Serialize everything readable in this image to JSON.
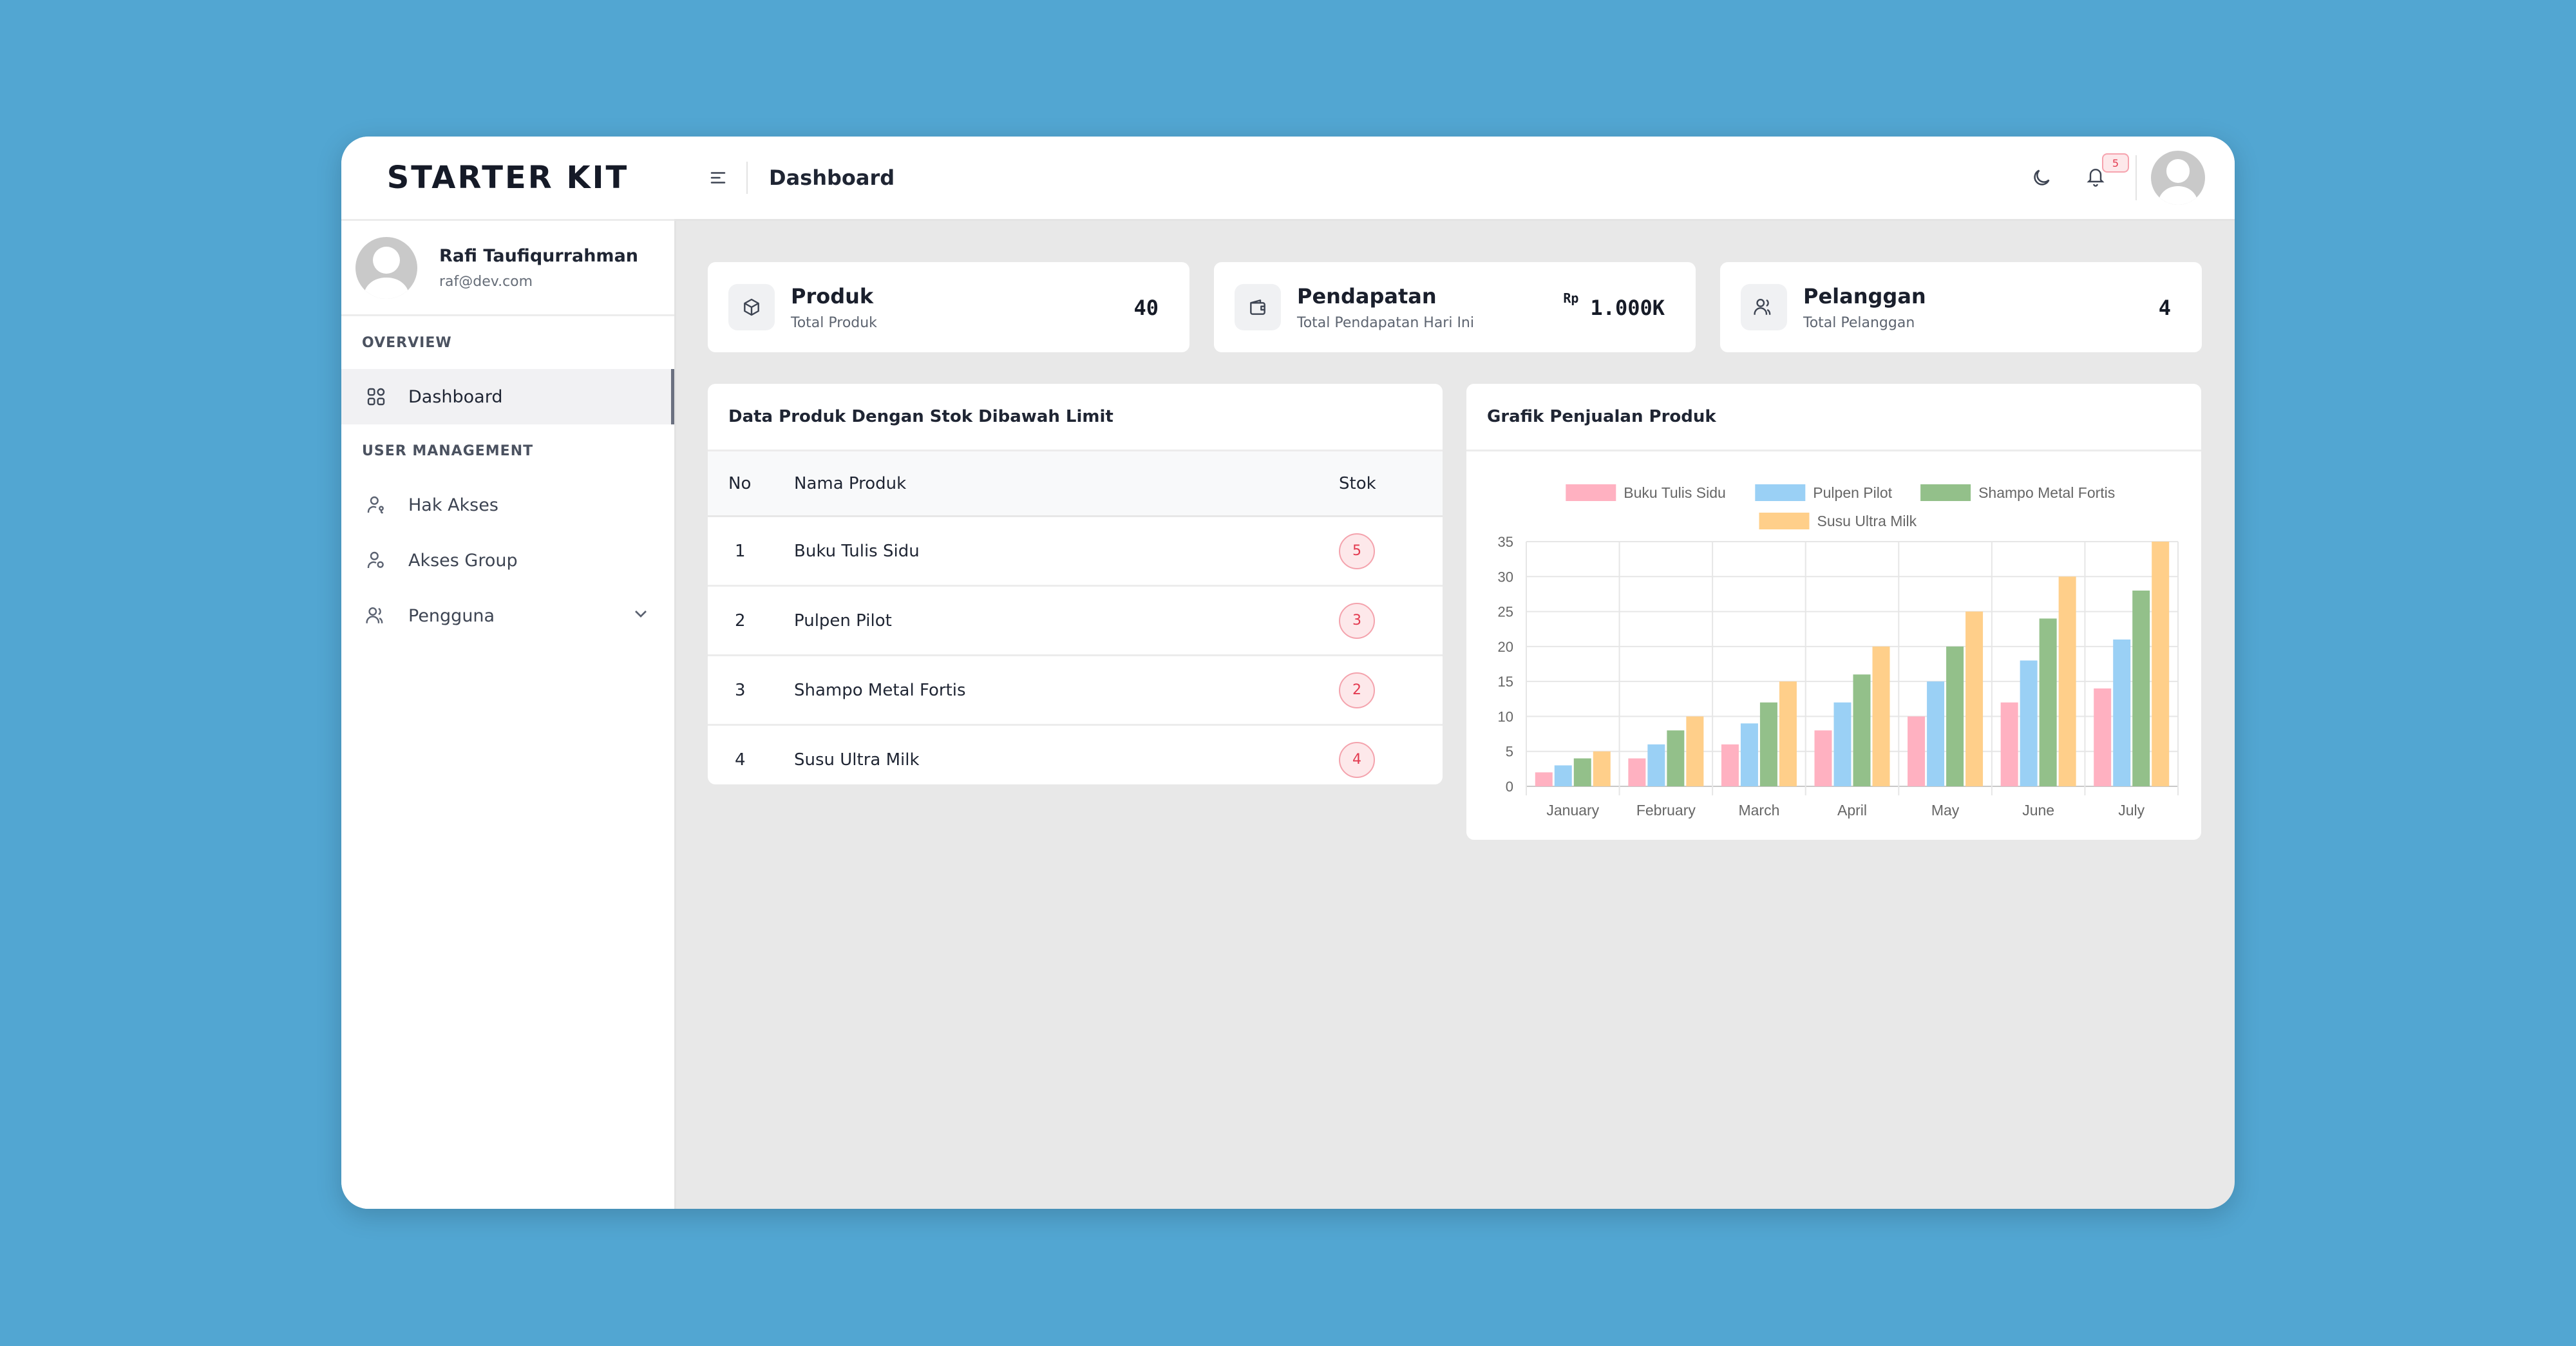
{
  "app": {
    "brand": "STARTER KIT"
  },
  "user": {
    "name": "Rafi Taufiqurrahman",
    "email": "raf@dev.com"
  },
  "sidebar": {
    "sections": [
      {
        "label": "OVERVIEW",
        "items": [
          {
            "label": "Dashboard",
            "icon": "grid-icon",
            "active": true
          }
        ]
      },
      {
        "label": "USER MANAGEMENT",
        "items": [
          {
            "label": "Hak Akses",
            "icon": "user-key-icon"
          },
          {
            "label": "Akses Group",
            "icon": "user-group-icon"
          },
          {
            "label": "Pengguna",
            "icon": "users-icon",
            "expandable": true
          }
        ]
      }
    ]
  },
  "header": {
    "title": "Dashboard",
    "notification_count": "5"
  },
  "stats": [
    {
      "title": "Produk",
      "subtitle": "Total Produk",
      "value": "40",
      "icon": "box-icon"
    },
    {
      "title": "Pendapatan",
      "subtitle": "Total Pendapatan Hari Ini",
      "currency": "Rp",
      "value": "1.000K",
      "icon": "wallet-icon"
    },
    {
      "title": "Pelanggan",
      "subtitle": "Total Pelanggan",
      "value": "4",
      "icon": "users-icon"
    }
  ],
  "low_stock": {
    "title": "Data Produk Dengan Stok Dibawah Limit",
    "columns": [
      "No",
      "Nama Produk",
      "Stok"
    ],
    "rows": [
      {
        "no": "1",
        "name": "Buku Tulis Sidu",
        "stock": "5"
      },
      {
        "no": "2",
        "name": "Pulpen Pilot",
        "stock": "3"
      },
      {
        "no": "3",
        "name": "Shampo Metal Fortis",
        "stock": "2"
      },
      {
        "no": "4",
        "name": "Susu Ultra Milk",
        "stock": "4"
      }
    ]
  },
  "sales_chart": {
    "title": "Grafik Penjualan Produk"
  },
  "chart_data": {
    "type": "bar",
    "title": "",
    "xlabel": "",
    "ylabel": "",
    "categories": [
      "January",
      "February",
      "March",
      "April",
      "May",
      "June",
      "July"
    ],
    "series": [
      {
        "name": "Buku Tulis Sidu",
        "color": "#ffb1c1",
        "values": [
          2,
          4,
          6,
          8,
          10,
          12,
          14
        ]
      },
      {
        "name": "Pulpen Pilot",
        "color": "#9ad0f5",
        "values": [
          3,
          6,
          9,
          12,
          15,
          18,
          21
        ]
      },
      {
        "name": "Shampo Metal Fortis",
        "color": "#93c08a",
        "values": [
          4,
          8,
          12,
          16,
          20,
          24,
          28
        ]
      },
      {
        "name": "Susu Ultra Milk",
        "color": "#ffcf8a",
        "values": [
          5,
          10,
          15,
          20,
          25,
          30,
          35
        ]
      }
    ],
    "ylim": [
      0,
      35
    ],
    "yticks": [
      0,
      5,
      10,
      15,
      20,
      25,
      30,
      35
    ],
    "grid": true,
    "legend": "top"
  }
}
